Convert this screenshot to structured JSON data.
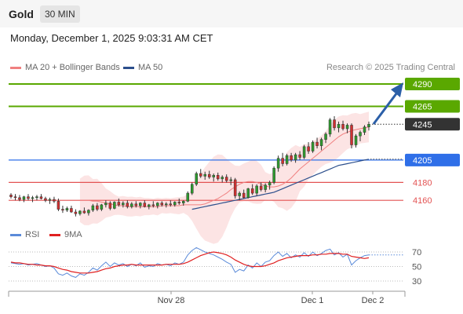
{
  "header": {
    "symbol": "Gold",
    "timeframe": "30 MIN"
  },
  "timestamp": "Monday, December 1, 2025 9:03:31 AM CET",
  "legend": {
    "ma20": {
      "label": "MA 20 + Bollinger Bands",
      "color": "#f08080"
    },
    "ma50": {
      "label": "MA 50",
      "color": "#2c4f8c"
    }
  },
  "copyright": "Research © 2025 Trading Central",
  "rsi_legend": {
    "rsi": {
      "label": "RSI",
      "color": "#5b8bd9"
    },
    "ma9": {
      "label": "9MA",
      "color": "#e02020"
    }
  },
  "levels": [
    {
      "label": "4290",
      "value": 4290,
      "type": "resistance",
      "color": "#5aa800"
    },
    {
      "label": "4265",
      "value": 4265,
      "type": "resistance",
      "color": "#5aa800"
    },
    {
      "label": "4245",
      "value": 4245,
      "type": "current",
      "color": "#333333"
    },
    {
      "label": "4205",
      "value": 4205,
      "type": "pivot",
      "color": "#2f6fe8"
    },
    {
      "label": "4180",
      "value": 4180,
      "type": "support",
      "color": "#e35353"
    },
    {
      "label": "4160",
      "value": 4160,
      "type": "support",
      "color": "#e35353"
    }
  ],
  "chart_data": {
    "type": "candlestick",
    "x_labels": [
      "Nov 28",
      "Dec 1",
      "Dec 2"
    ],
    "y_range": [
      4135,
      4300
    ],
    "rsi_range": [
      20,
      80
    ],
    "rsi_ticks": [
      "70",
      "50",
      "30"
    ],
    "candles": [
      [
        4166,
        4168,
        4162,
        4164
      ],
      [
        4164,
        4167,
        4160,
        4163
      ],
      [
        4163,
        4166,
        4159,
        4161
      ],
      [
        4161,
        4165,
        4158,
        4164
      ],
      [
        4164,
        4167,
        4160,
        4162
      ],
      [
        4162,
        4165,
        4158,
        4163
      ],
      [
        4163,
        4166,
        4160,
        4164
      ],
      [
        4164,
        4167,
        4161,
        4162
      ],
      [
        4162,
        4164,
        4158,
        4160
      ],
      [
        4160,
        4163,
        4156,
        4161
      ],
      [
        4161,
        4164,
        4157,
        4159
      ],
      [
        4159,
        4162,
        4148,
        4150
      ],
      [
        4150,
        4154,
        4146,
        4149
      ],
      [
        4149,
        4153,
        4147,
        4151
      ],
      [
        4151,
        4154,
        4146,
        4147
      ],
      [
        4147,
        4150,
        4142,
        4145
      ],
      [
        4145,
        4149,
        4143,
        4148
      ],
      [
        4148,
        4152,
        4145,
        4146
      ],
      [
        4146,
        4150,
        4143,
        4149
      ],
      [
        4149,
        4156,
        4147,
        4154
      ],
      [
        4154,
        4157,
        4148,
        4150
      ],
      [
        4150,
        4156,
        4148,
        4155
      ],
      [
        4155,
        4160,
        4152,
        4157
      ],
      [
        4157,
        4159,
        4149,
        4151
      ],
      [
        4151,
        4159,
        4150,
        4158
      ],
      [
        4158,
        4162,
        4153,
        4155
      ],
      [
        4155,
        4159,
        4152,
        4157
      ],
      [
        4157,
        4160,
        4151,
        4153
      ],
      [
        4153,
        4158,
        4151,
        4156
      ],
      [
        4156,
        4159,
        4152,
        4154
      ],
      [
        4154,
        4158,
        4151,
        4157
      ],
      [
        4157,
        4160,
        4152,
        4153
      ],
      [
        4153,
        4156,
        4150,
        4155
      ],
      [
        4155,
        4159,
        4152,
        4154
      ],
      [
        4154,
        4158,
        4151,
        4157
      ],
      [
        4157,
        4159,
        4153,
        4155
      ],
      [
        4155,
        4158,
        4152,
        4156
      ],
      [
        4156,
        4160,
        4153,
        4155
      ],
      [
        4155,
        4159,
        4153,
        4158
      ],
      [
        4158,
        4162,
        4155,
        4157
      ],
      [
        4157,
        4160,
        4154,
        4159
      ],
      [
        4159,
        4170,
        4158,
        4168
      ],
      [
        4168,
        4180,
        4166,
        4178
      ],
      [
        4178,
        4192,
        4176,
        4190
      ],
      [
        4190,
        4195,
        4185,
        4187
      ],
      [
        4187,
        4192,
        4183,
        4189
      ],
      [
        4189,
        4193,
        4184,
        4186
      ],
      [
        4186,
        4190,
        4181,
        4188
      ],
      [
        4188,
        4191,
        4182,
        4184
      ],
      [
        4184,
        4188,
        4180,
        4186
      ],
      [
        4186,
        4189,
        4180,
        4182
      ],
      [
        4182,
        4186,
        4177,
        4183
      ],
      [
        4183,
        4185,
        4162,
        4165
      ],
      [
        4165,
        4170,
        4160,
        4168
      ],
      [
        4168,
        4172,
        4162,
        4163
      ],
      [
        4163,
        4174,
        4162,
        4173
      ],
      [
        4173,
        4178,
        4166,
        4168
      ],
      [
        4168,
        4178,
        4165,
        4176
      ],
      [
        4176,
        4180,
        4170,
        4172
      ],
      [
        4172,
        4179,
        4169,
        4177
      ],
      [
        4177,
        4182,
        4172,
        4180
      ],
      [
        4180,
        4198,
        4178,
        4196
      ],
      [
        4196,
        4210,
        4192,
        4207
      ],
      [
        4207,
        4213,
        4198,
        4201
      ],
      [
        4201,
        4212,
        4199,
        4210
      ],
      [
        4210,
        4213,
        4203,
        4205
      ],
      [
        4205,
        4213,
        4202,
        4211
      ],
      [
        4211,
        4215,
        4205,
        4208
      ],
      [
        4208,
        4222,
        4206,
        4220
      ],
      [
        4220,
        4225,
        4212,
        4215
      ],
      [
        4215,
        4227,
        4213,
        4225
      ],
      [
        4225,
        4230,
        4218,
        4221
      ],
      [
        4221,
        4230,
        4216,
        4228
      ],
      [
        4228,
        4236,
        4224,
        4234
      ],
      [
        4234,
        4252,
        4231,
        4250
      ],
      [
        4250,
        4254,
        4238,
        4241
      ],
      [
        4241,
        4248,
        4236,
        4245
      ],
      [
        4245,
        4249,
        4238,
        4240
      ],
      [
        4240,
        4246,
        4235,
        4244
      ],
      [
        4244,
        4246,
        4218,
        4222
      ],
      [
        4222,
        4234,
        4219,
        4232
      ],
      [
        4232,
        4238,
        4226,
        4236
      ],
      [
        4236,
        4244,
        4233,
        4242
      ],
      [
        4242,
        4248,
        4238,
        4245
      ]
    ],
    "ma20": [
      4160,
      4160,
      4160,
      4159,
      4159,
      4158,
      4157,
      4156,
      4155,
      4154,
      4154,
      4153,
      4153,
      4153,
      4153,
      4153,
      4153,
      4153,
      4153,
      4154,
      4154,
      4154,
      4154,
      4154,
      4155,
      4155,
      4155,
      4155,
      4155,
      4156,
      4158,
      4160,
      4162,
      4165,
      4168,
      4172,
      4175,
      4178,
      4180,
      4181,
      4181,
      4180,
      4178,
      4176,
      4175,
      4175,
      4176,
      4178,
      4181,
      4185,
      4190,
      4195,
      4199,
      4203,
      4207,
      4211,
      4215,
      4219,
      4223,
      4227,
      4231,
      4234,
      4236,
      4238,
      4239,
      4240,
      4241,
      4242
    ],
    "ma50": [
      4150,
      4151,
      4152,
      4153,
      4154,
      4155,
      4156,
      4157,
      4158,
      4159,
      4160,
      4161,
      4162,
      4163,
      4164,
      4165,
      4166,
      4167,
      4168,
      4169,
      4171,
      4173,
      4175,
      4177,
      4179,
      4181,
      4183,
      4185,
      4187,
      4189,
      4191,
      4193,
      4195,
      4197,
      4199,
      4200,
      4201,
      4202,
      4203,
      4204,
      4205,
      4206
    ],
    "rsi": [
      55,
      54,
      53,
      54,
      52,
      53,
      54,
      52,
      50,
      51,
      48,
      40,
      38,
      41,
      37,
      35,
      40,
      38,
      42,
      48,
      45,
      51,
      56,
      50,
      55,
      52,
      54,
      50,
      53,
      51,
      55,
      49,
      51,
      50,
      54,
      52,
      53,
      51,
      55,
      53,
      56,
      66,
      72,
      76,
      73,
      70,
      68,
      66,
      63,
      60,
      56,
      53,
      42,
      46,
      44,
      52,
      48,
      55,
      50,
      56,
      58,
      65,
      70,
      64,
      68,
      62,
      66,
      63,
      69,
      64,
      70,
      65,
      68,
      72,
      74,
      66,
      69,
      63,
      67,
      52,
      58,
      62,
      65,
      66
    ],
    "rsi_ma9": [
      56,
      55,
      55,
      54,
      53,
      53,
      52,
      52,
      51,
      51,
      50,
      48,
      46,
      45,
      43,
      42,
      41,
      41,
      41,
      42,
      43,
      45,
      47,
      48,
      50,
      51,
      52,
      52,
      53,
      52,
      52,
      52,
      52,
      52,
      52,
      52,
      53,
      53,
      53,
      53,
      54,
      56,
      59,
      62,
      65,
      67,
      69,
      70,
      69,
      68,
      66,
      63,
      59,
      56,
      53,
      51,
      50,
      50,
      50,
      51,
      53,
      55,
      58,
      60,
      62,
      63,
      64,
      65,
      65,
      65,
      66,
      66,
      67,
      67,
      68,
      68,
      68,
      67,
      67,
      64,
      63,
      62,
      61,
      62
    ]
  }
}
